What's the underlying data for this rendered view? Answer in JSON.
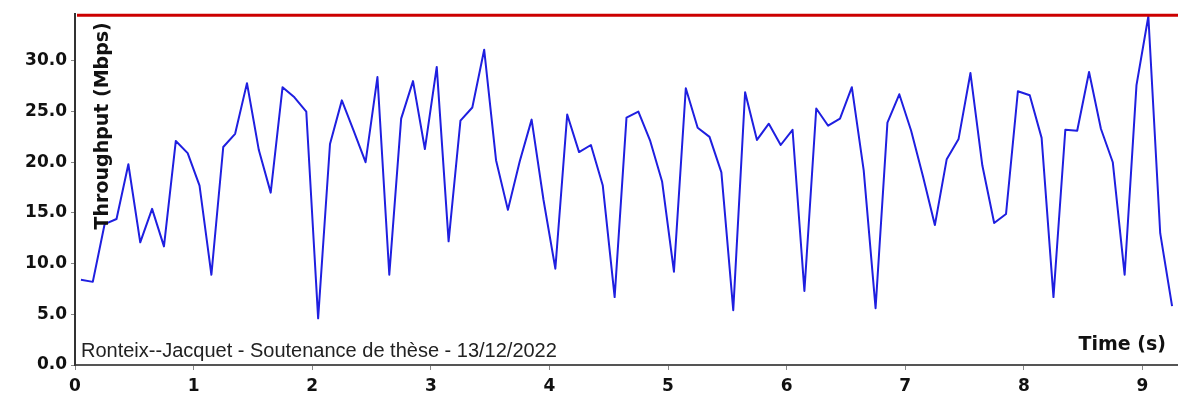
{
  "chart_data": {
    "type": "line",
    "xlabel": "Time (s)",
    "ylabel": "Throughput (Mbps)",
    "annotations": [
      "Ronteix--Jacquet - Soutenance de thèse - 13/12/2022"
    ],
    "x": [
      0.05,
      0.15,
      0.25,
      0.35,
      0.45,
      0.55,
      0.65,
      0.75,
      0.85,
      0.95,
      1.05,
      1.15,
      1.25,
      1.35,
      1.45,
      1.55,
      1.65,
      1.75,
      1.85,
      1.95,
      2.05,
      2.15,
      2.25,
      2.35,
      2.45,
      2.55,
      2.65,
      2.75,
      2.85,
      2.95,
      3.05,
      3.15,
      3.25,
      3.35,
      3.45,
      3.55,
      3.65,
      3.75,
      3.85,
      3.95,
      4.05,
      4.15,
      4.25,
      4.35,
      4.45,
      4.55,
      4.65,
      4.75,
      4.85,
      4.95,
      5.05,
      5.15,
      5.25,
      5.35,
      5.45,
      5.55,
      5.65,
      5.75,
      5.85,
      5.95,
      6.05,
      6.15,
      6.25,
      6.35,
      6.45,
      6.55,
      6.65,
      6.75,
      6.85,
      6.95,
      7.05,
      7.15,
      7.25,
      7.35,
      7.45,
      7.55,
      7.65,
      7.75,
      7.85,
      7.95,
      8.05,
      8.15,
      8.25,
      8.35,
      8.45,
      8.55,
      8.65,
      8.75,
      8.85,
      8.95,
      9.05,
      9.15,
      9.25
    ],
    "series": [
      {
        "color": "#1f1fe0",
        "values": [
          8.4,
          8.2,
          13.9,
          14.4,
          19.8,
          12.1,
          15.4,
          11.7,
          22.1,
          20.9,
          17.7,
          8.9,
          21.5,
          22.8,
          27.8,
          21.2,
          17.0,
          27.4,
          26.4,
          25.0,
          4.6,
          21.8,
          26.1,
          23.1,
          20.0,
          28.4,
          8.9,
          24.3,
          28.0,
          21.3,
          29.4,
          12.2,
          24.1,
          25.4,
          31.1,
          20.2,
          15.3,
          20.1,
          24.2,
          16.3,
          9.5,
          24.7,
          21.0,
          21.7,
          17.7,
          6.7,
          24.4,
          25.0,
          22.1,
          18.1,
          9.2,
          27.3,
          23.4,
          22.5,
          19.0,
          5.4,
          26.9,
          22.2,
          23.8,
          21.7,
          23.2,
          7.3,
          25.3,
          23.6,
          24.3,
          27.4,
          19.2,
          5.6,
          23.9,
          26.7,
          23.1,
          18.6,
          13.8,
          20.3,
          22.3,
          28.8,
          19.7,
          14.0,
          14.9,
          27.0,
          26.6,
          22.4,
          6.7,
          23.2,
          23.1,
          28.9,
          23.3,
          20.0,
          8.9,
          27.6,
          34.4,
          13.0,
          5.8
        ]
      }
    ],
    "xlim": [
      0,
      9.3
    ],
    "xticks": [
      0,
      1,
      2,
      3,
      4,
      5,
      6,
      7,
      8,
      9
    ],
    "ylim": [
      0,
      34.6
    ],
    "yticks": [
      {
        "value": 0,
        "label": "0.0"
      },
      {
        "value": 5,
        "label": "5.0"
      },
      {
        "value": 10,
        "label": "10.0"
      },
      {
        "value": 15,
        "label": "15.0"
      },
      {
        "value": 20,
        "label": "20.0"
      },
      {
        "value": 25,
        "label": "25.0"
      },
      {
        "value": 30,
        "label": "30.0"
      }
    ],
    "ref_lines": [
      {
        "axis": "y",
        "value": 34.5,
        "color": "#cc0000"
      }
    ],
    "grid": false,
    "legend": false,
    "marker": "none",
    "line_style": "solid"
  }
}
